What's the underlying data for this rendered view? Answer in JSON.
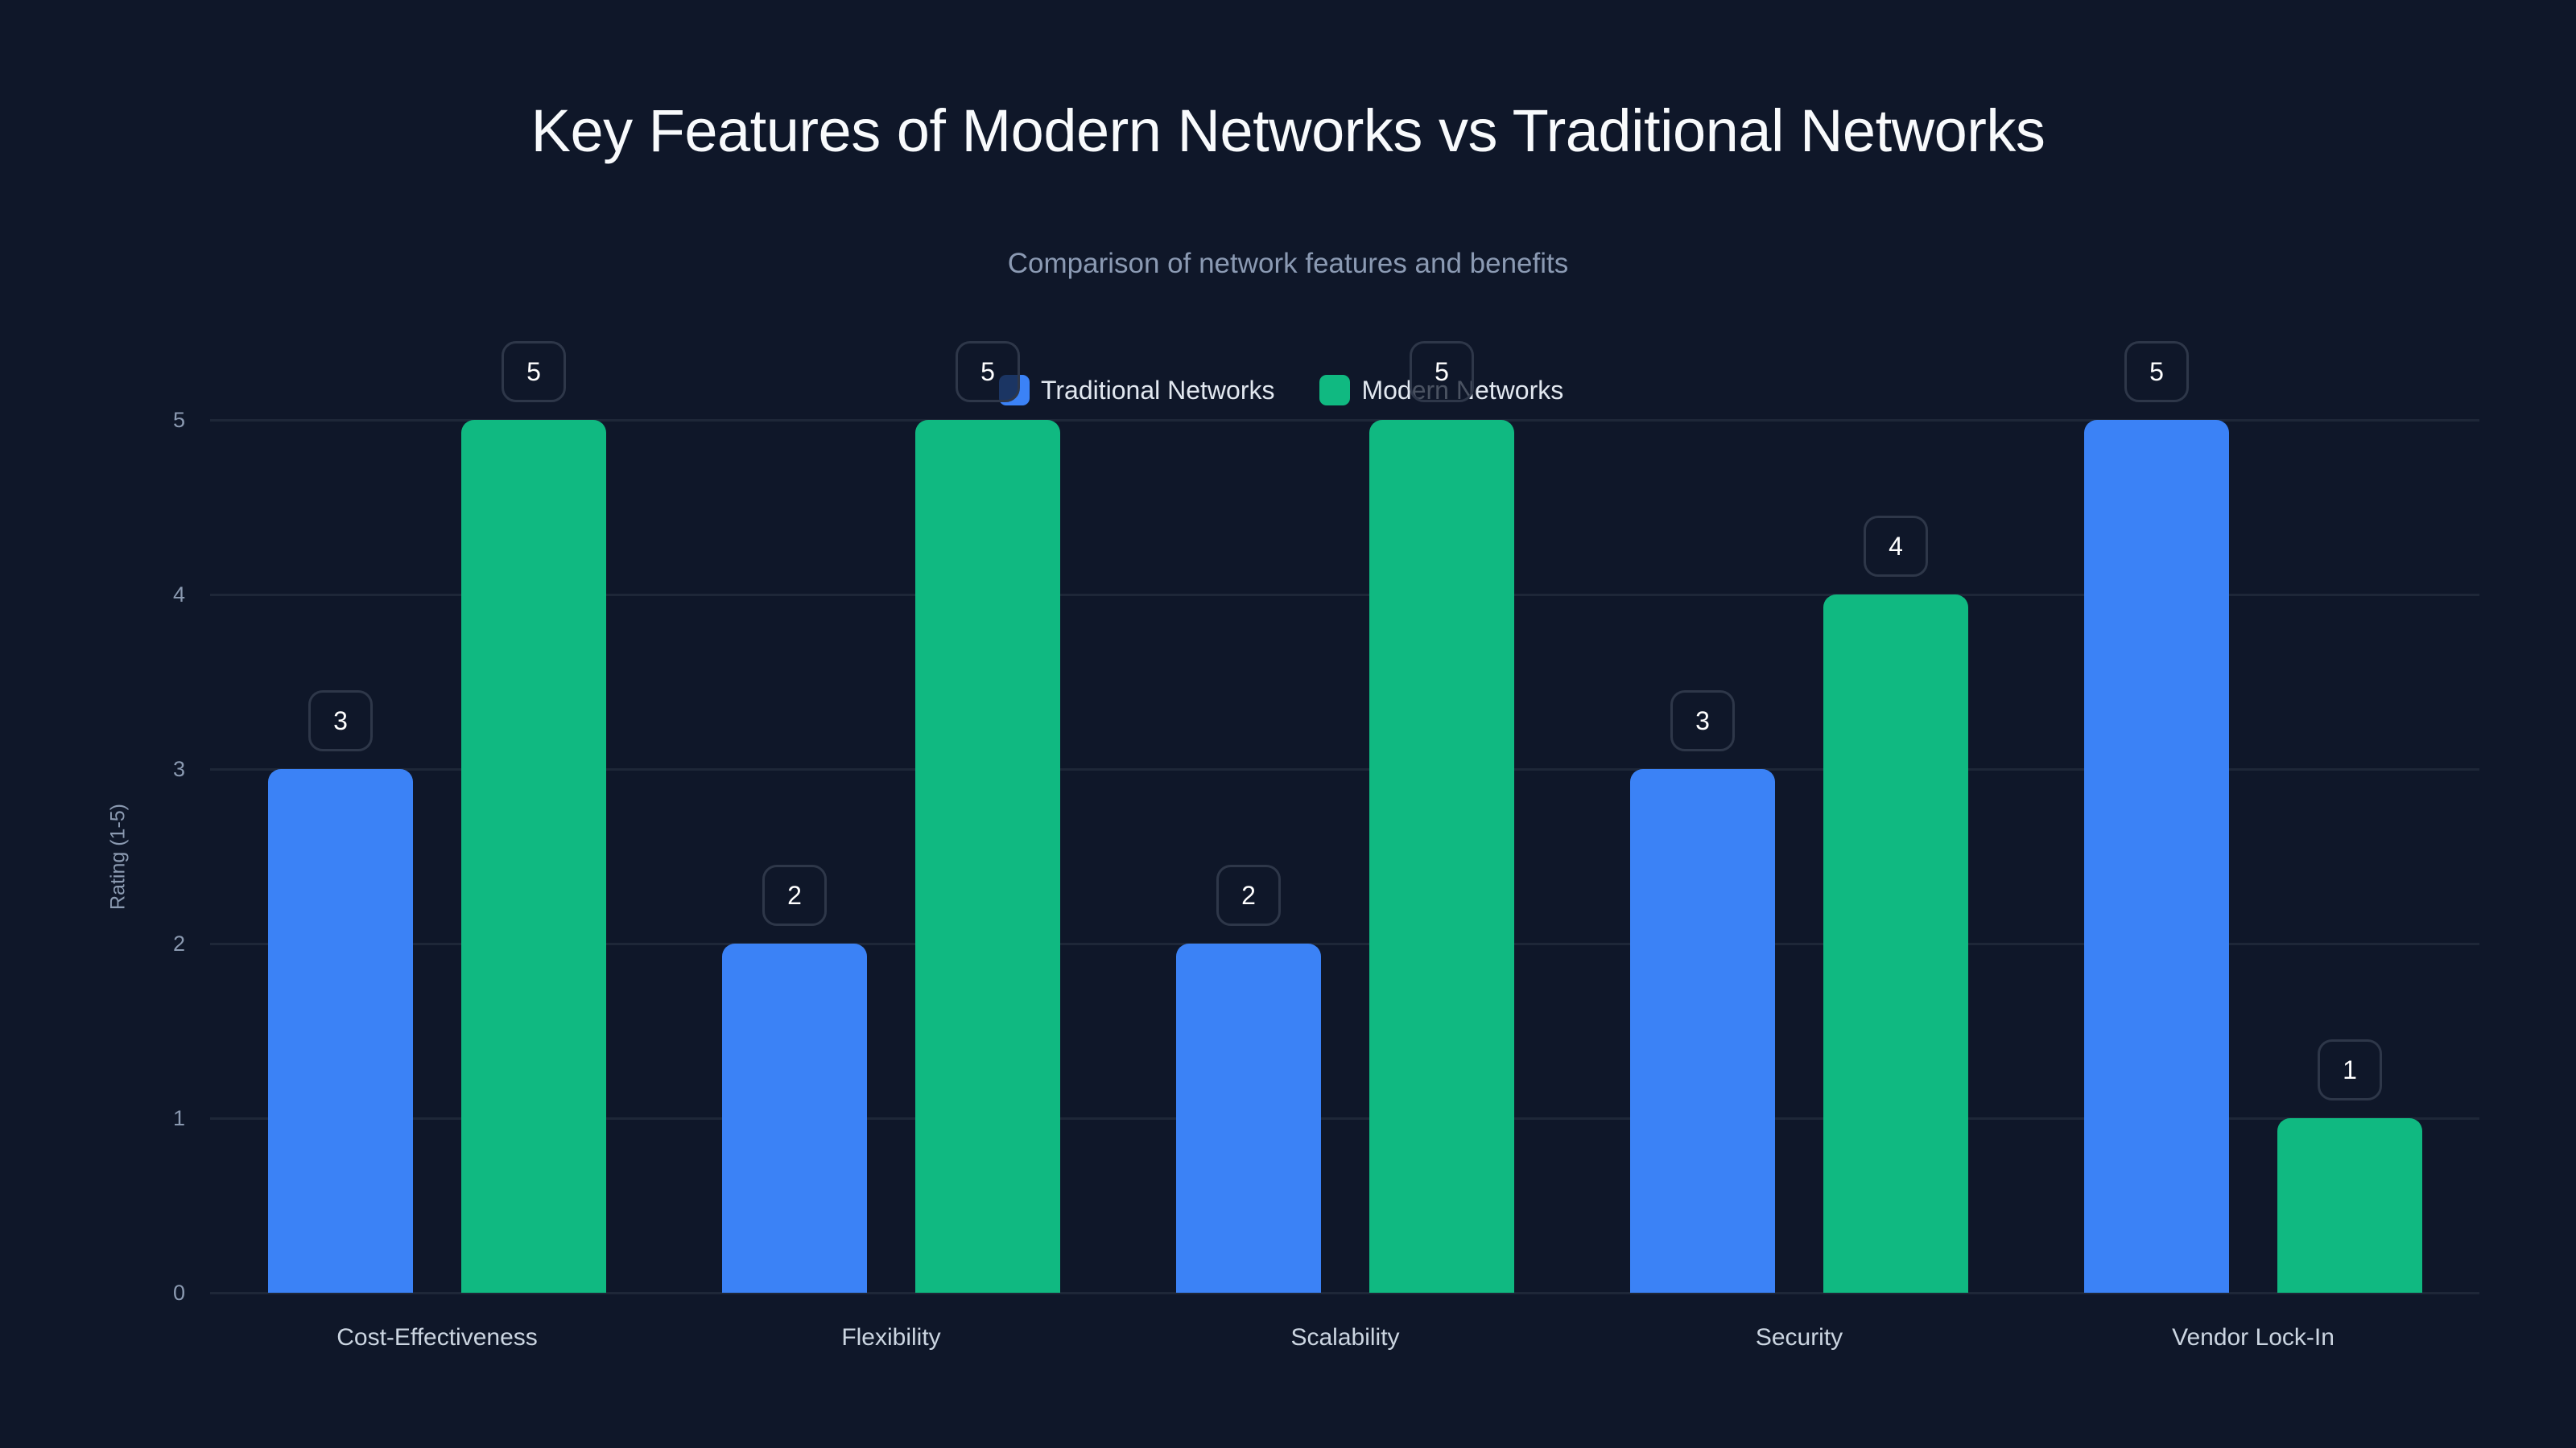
{
  "chart_data": {
    "type": "bar",
    "title": "Key Features of Modern Networks vs Traditional Networks",
    "subtitle": "Comparison of network features and benefits",
    "xlabel": "",
    "ylabel": "Rating (1-5)",
    "ylim": [
      0,
      5
    ],
    "yticks": [
      "0",
      "1",
      "2",
      "3",
      "4",
      "5"
    ],
    "grid": true,
    "legend_position": "top-center",
    "categories": [
      "Cost-Effectiveness",
      "Flexibility",
      "Scalability",
      "Security",
      "Vendor Lock-In"
    ],
    "series": [
      {
        "name": "Traditional Networks",
        "color": "#3b82f6",
        "values": [
          3,
          2,
          2,
          3,
          5
        ]
      },
      {
        "name": "Modern Networks",
        "color": "#10b981",
        "values": [
          5,
          5,
          5,
          4,
          1
        ]
      }
    ]
  },
  "colors": {
    "background": "#0f1729",
    "traditional": "#3b82f6",
    "modern": "#10b981",
    "grid": "#1e2738"
  }
}
